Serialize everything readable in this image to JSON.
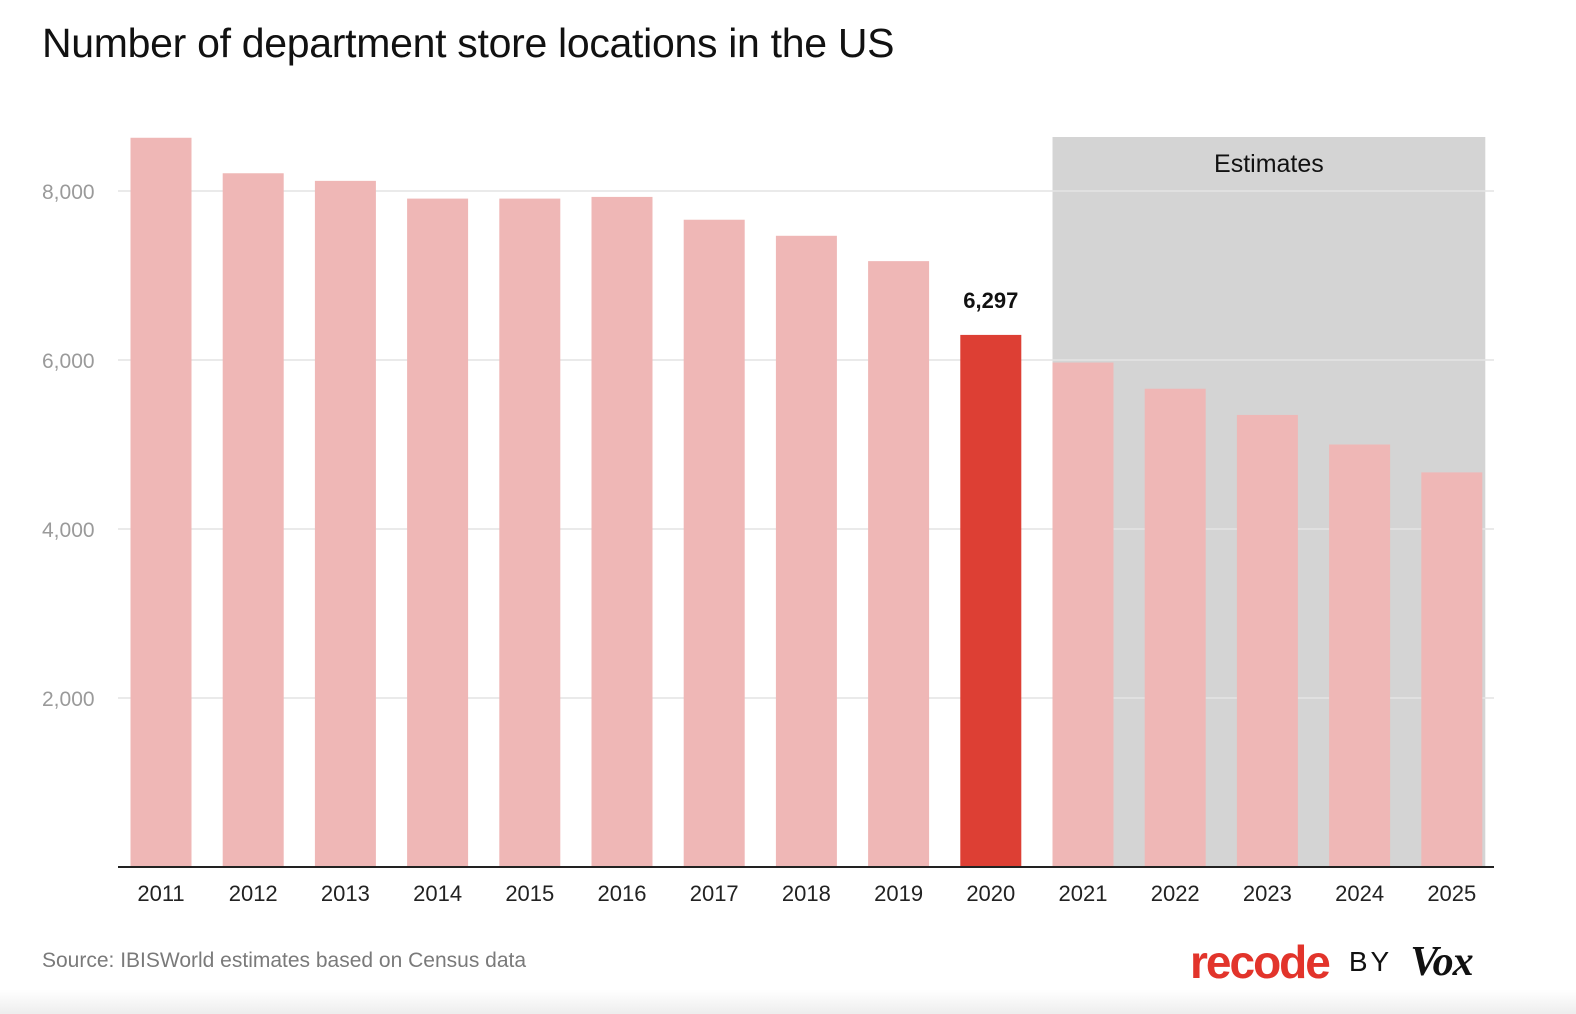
{
  "chart_data": {
    "type": "bar",
    "title": "Number of department store locations in the US",
    "xlabel": "",
    "ylabel": "",
    "categories": [
      "2011",
      "2012",
      "2013",
      "2014",
      "2015",
      "2016",
      "2017",
      "2018",
      "2019",
      "2020",
      "2021",
      "2022",
      "2023",
      "2024",
      "2025"
    ],
    "values": [
      8630,
      8210,
      8120,
      7910,
      7910,
      7930,
      7660,
      7470,
      7170,
      6297,
      5970,
      5660,
      5350,
      5000,
      4670
    ],
    "ylim": [
      0,
      8700
    ],
    "yticks": [
      2000,
      4000,
      6000,
      8000
    ],
    "ytick_labels": [
      "2,000",
      "4,000",
      "6,000",
      "8,000"
    ],
    "grid": true,
    "highlight": {
      "category": "2020",
      "label": "6,297"
    },
    "estimates_region": {
      "from": "2021",
      "to": "2025",
      "label": "Estimates"
    }
  },
  "colors": {
    "bar": "#efb7b6",
    "highlight_bar": "#dd3f34",
    "estimates_bg": "#d4d4d4",
    "grid": "#e3e3e3",
    "axis": "#222222",
    "tick_label": "#9a9a9a"
  },
  "footer": {
    "source": "Source: IBISWorld estimates based on Census data",
    "brand": {
      "recode": "recode",
      "by": "BY",
      "vox": "Vox"
    }
  }
}
